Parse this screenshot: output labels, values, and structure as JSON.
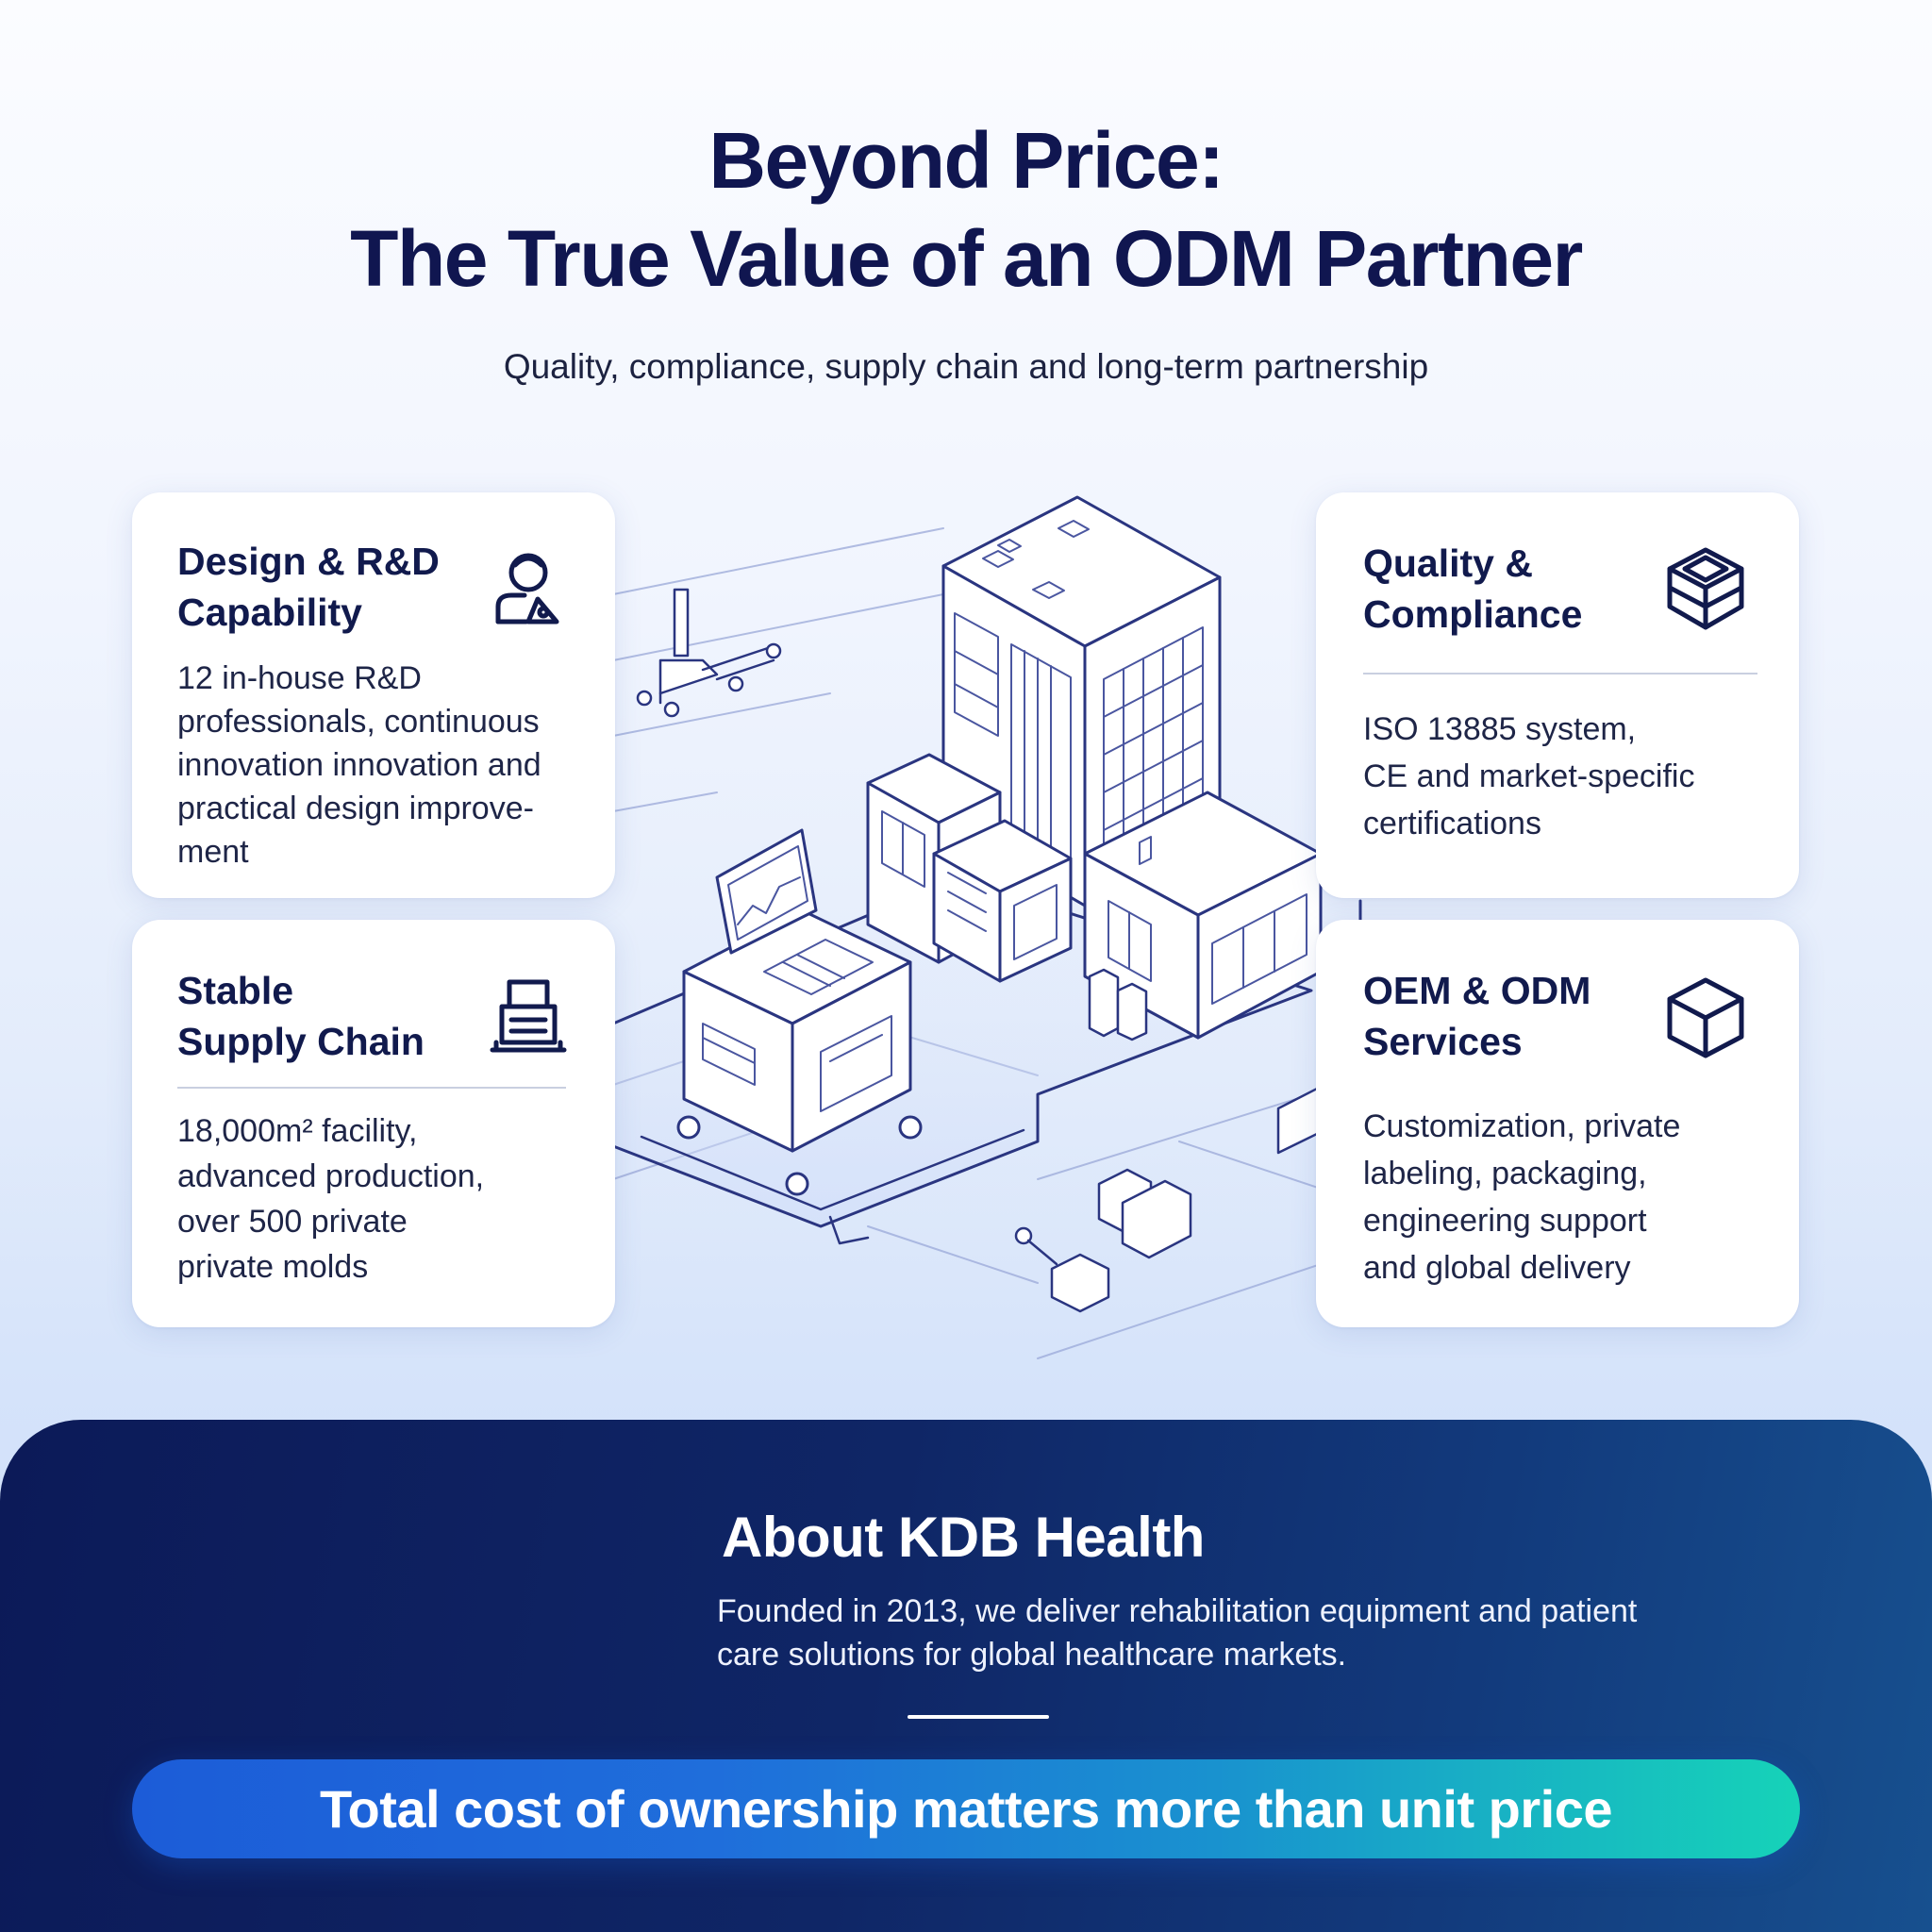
{
  "header": {
    "title_line1": "Beyond Price:",
    "title_line2": "The True Value of an ODM Partner",
    "subtitle": "Quality, compliance, supply chain and long-term partnership"
  },
  "cards": {
    "design": {
      "title_lines": [
        "Design & R&D",
        "Capability"
      ],
      "body_lines": [
        "12 in-house R&D",
        "professionals, continuous",
        "innovation innovation and",
        "practical design improve-",
        "ment"
      ],
      "icon": "engineer-icon"
    },
    "quality": {
      "title_lines": [
        "Quality &",
        "Compliance"
      ],
      "body_lines": [
        "ISO 13885 system,",
        "CE and market-specific",
        "certifications"
      ],
      "icon": "open-box-icon"
    },
    "supply": {
      "title_lines": [
        "Stable",
        "Supply Chain"
      ],
      "body_lines": [
        "18,000m² facility,",
        "advanced production,",
        "over 500 private",
        "private molds"
      ],
      "icon": "document-stack-icon"
    },
    "oem": {
      "title_lines": [
        "OEM & ODM",
        "Services"
      ],
      "body_lines": [
        "Customization, private",
        "labeling, packaging,",
        "engineering support",
        "and global delivery"
      ],
      "icon": "cube-icon"
    }
  },
  "about": {
    "title": "About KDB Health",
    "desc_lines": [
      "Founded in 2013, we deliver rehabilitation equipment and patient",
      "care solutions for global healthcare markets."
    ],
    "banner": "Total cost of ownership matters more than unit price"
  },
  "colors": {
    "navy": "#101650",
    "line": "#2a3580",
    "banner_start": "#1c5cd8",
    "banner_end": "#16d3b8"
  }
}
